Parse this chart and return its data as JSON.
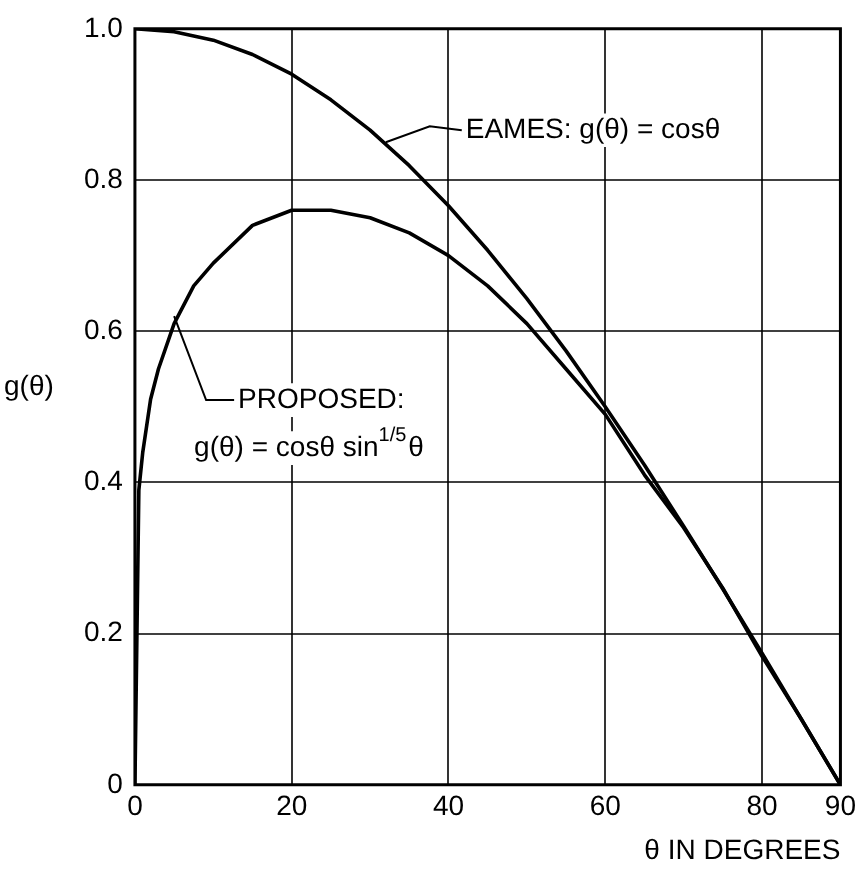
{
  "chart_data": {
    "type": "line",
    "xlabel": "θ IN DEGREES",
    "ylabel": "g(θ)",
    "xlim": [
      0,
      90
    ],
    "xticks": [
      0,
      20,
      40,
      60,
      80,
      90
    ],
    "ylim": [
      0,
      1
    ],
    "yticks": [
      0,
      0.2,
      0.4,
      0.6,
      0.8,
      {
        "value": 1,
        "label": "1.0"
      }
    ],
    "grid": true,
    "legend": false,
    "marker": "none",
    "line_style": "solid",
    "series": [
      {
        "color": "#000000",
        "x": [
          0,
          5,
          10,
          15,
          20,
          25,
          30,
          35,
          40,
          45,
          50,
          55,
          60,
          65,
          70,
          75,
          80,
          85,
          90
        ],
        "values": [
          1.0,
          0.996,
          0.985,
          0.966,
          0.94,
          0.906,
          0.866,
          0.819,
          0.766,
          0.707,
          0.643,
          0.574,
          0.5,
          0.423,
          0.342,
          0.259,
          0.174,
          0.087,
          0
        ]
      },
      {
        "color": "#000000",
        "x": [
          0,
          0.5,
          1,
          2,
          3,
          5,
          7.5,
          10,
          15,
          20,
          25,
          30,
          35,
          40,
          45,
          50,
          55,
          60,
          65,
          70,
          75,
          80,
          85,
          90
        ],
        "values": [
          0,
          0.39,
          0.44,
          0.51,
          0.55,
          0.61,
          0.66,
          0.69,
          0.74,
          0.76,
          0.76,
          0.75,
          0.73,
          0.7,
          0.66,
          0.61,
          0.55,
          0.49,
          0.41,
          0.34,
          0.26,
          0.17,
          0.087,
          0
        ]
      }
    ],
    "annotations": [
      {
        "text": "EAMES: g(θ) = cosθ",
        "x": 32,
        "y": 0.85
      },
      {
        "text": "PROPOSED:\ng(θ) = cosθ sin$^{1/5}$θ",
        "x": 5,
        "y": 0.62
      }
    ]
  }
}
